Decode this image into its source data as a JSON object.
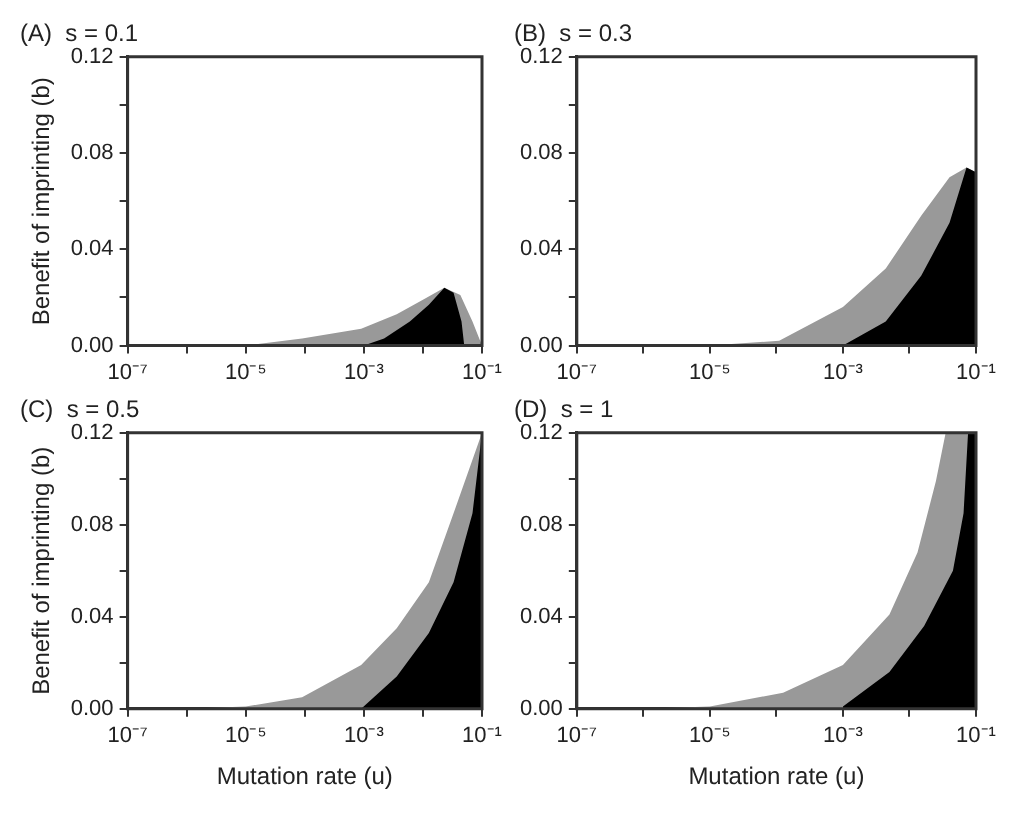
{
  "chart_data": [
    {
      "type": "area",
      "title": "(A)  s = 0.1",
      "ylabel": "Benefit of imprinting (b)",
      "log": "x",
      "grid": false,
      "legend": false,
      "xlim": [
        1e-07,
        0.1
      ],
      "ylim": [
        0,
        0.12
      ],
      "xticks": [
        {
          "value": 1e-07,
          "label": "10⁻⁷"
        },
        {
          "value": 1e-06,
          "label": null
        },
        {
          "value": 1e-05,
          "label": "10⁻⁵"
        },
        {
          "value": 0.0001,
          "label": null
        },
        {
          "value": 0.001,
          "label": "10⁻³"
        },
        {
          "value": 0.01,
          "label": null
        },
        {
          "value": 0.1,
          "label": "10⁻¹"
        }
      ],
      "yticks": [
        {
          "value": 0,
          "label": "0.00"
        },
        {
          "value": 0.02,
          "label": null
        },
        {
          "value": 0.04,
          "label": "0.04"
        },
        {
          "value": 0.06,
          "label": null
        },
        {
          "value": 0.08,
          "label": "0.08"
        },
        {
          "value": 0.1,
          "label": null
        },
        {
          "value": 0.12,
          "label": "0.12"
        }
      ],
      "series": [
        {
          "color": "#999999",
          "x": [
            1e-05,
            9e-05,
            0.0009,
            0.0036,
            0.01,
            0.023,
            0.043,
            0.069,
            0.1
          ],
          "values": [
            0,
            0.003,
            0.007,
            0.013,
            0.019,
            0.024,
            0.021,
            0.01,
            0
          ]
        },
        {
          "color": "#000000",
          "x": [
            0.001,
            0.0022,
            0.006,
            0.0126,
            0.023,
            0.033,
            0.045,
            0.05
          ],
          "values": [
            0,
            0.003,
            0.01,
            0.017,
            0.024,
            0.022,
            0.01,
            0
          ]
        }
      ]
    },
    {
      "type": "area",
      "title": "(B)  s = 0.3",
      "log": "x",
      "grid": false,
      "legend": false,
      "xlim": [
        1e-07,
        0.1
      ],
      "ylim": [
        0,
        0.12
      ],
      "xticks": [
        {
          "value": 1e-07,
          "label": "10⁻⁷"
        },
        {
          "value": 1e-06,
          "label": null
        },
        {
          "value": 1e-05,
          "label": "10⁻⁵"
        },
        {
          "value": 0.0001,
          "label": null
        },
        {
          "value": 0.001,
          "label": "10⁻³"
        },
        {
          "value": 0.01,
          "label": null
        },
        {
          "value": 0.1,
          "label": "10⁻¹"
        }
      ],
      "yticks": [
        {
          "value": 0,
          "label": "0.00"
        },
        {
          "value": 0.02,
          "label": null
        },
        {
          "value": 0.04,
          "label": "0.04"
        },
        {
          "value": 0.06,
          "label": null
        },
        {
          "value": 0.08,
          "label": "0.08"
        },
        {
          "value": 0.1,
          "label": null
        },
        {
          "value": 0.12,
          "label": "0.12"
        }
      ],
      "series": [
        {
          "color": "#999999",
          "x": [
            1e-05,
            0.00011,
            0.001,
            0.0044,
            0.015,
            0.04,
            0.072,
            0.1
          ],
          "values": [
            0,
            0.002,
            0.016,
            0.032,
            0.054,
            0.07,
            0.074,
            0.072
          ]
        },
        {
          "color": "#000000",
          "x": [
            0.001,
            0.0044,
            0.015,
            0.04,
            0.072,
            0.1
          ],
          "values": [
            0,
            0.01,
            0.029,
            0.051,
            0.074,
            0.072
          ]
        }
      ]
    },
    {
      "type": "area",
      "title": "(C)  s = 0.5",
      "ylabel": "Benefit of imprinting (b)",
      "xlabel": "Mutation rate (u)",
      "log": "x",
      "grid": false,
      "legend": false,
      "xlim": [
        1e-07,
        0.1
      ],
      "ylim": [
        0,
        0.12
      ],
      "xticks": [
        {
          "value": 1e-07,
          "label": "10⁻⁷"
        },
        {
          "value": 1e-06,
          "label": null
        },
        {
          "value": 1e-05,
          "label": "10⁻⁵"
        },
        {
          "value": 0.0001,
          "label": null
        },
        {
          "value": 0.001,
          "label": "10⁻³"
        },
        {
          "value": 0.01,
          "label": null
        },
        {
          "value": 0.1,
          "label": "10⁻¹"
        }
      ],
      "yticks": [
        {
          "value": 0,
          "label": "0.00"
        },
        {
          "value": 0.02,
          "label": null
        },
        {
          "value": 0.04,
          "label": "0.04"
        },
        {
          "value": 0.06,
          "label": null
        },
        {
          "value": 0.08,
          "label": "0.08"
        },
        {
          "value": 0.1,
          "label": null
        },
        {
          "value": 0.12,
          "label": "0.12"
        }
      ],
      "series": [
        {
          "color": "#999999",
          "x": [
            1e-06,
            1e-05,
            9e-05,
            0.0009,
            0.0036,
            0.0126,
            0.033,
            0.1
          ],
          "values": [
            0,
            0.001,
            0.005,
            0.019,
            0.035,
            0.055,
            0.085,
            0.12
          ]
        },
        {
          "color": "#000000",
          "x": [
            0.0009,
            0.0036,
            0.0126,
            0.033,
            0.069,
            0.1
          ],
          "values": [
            0,
            0.014,
            0.033,
            0.055,
            0.085,
            0.12
          ]
        }
      ]
    },
    {
      "type": "area",
      "title": "(D)  s = 1",
      "xlabel": "Mutation rate (u)",
      "log": "x",
      "grid": false,
      "legend": false,
      "xlim": [
        1e-07,
        0.1
      ],
      "ylim": [
        0,
        0.12
      ],
      "xticks": [
        {
          "value": 1e-07,
          "label": "10⁻⁷"
        },
        {
          "value": 1e-06,
          "label": null
        },
        {
          "value": 1e-05,
          "label": "10⁻⁵"
        },
        {
          "value": 0.0001,
          "label": null
        },
        {
          "value": 0.001,
          "label": "10⁻³"
        },
        {
          "value": 0.01,
          "label": null
        },
        {
          "value": 0.1,
          "label": "10⁻¹"
        }
      ],
      "yticks": [
        {
          "value": 0,
          "label": "0.00"
        },
        {
          "value": 0.02,
          "label": null
        },
        {
          "value": 0.04,
          "label": "0.04"
        },
        {
          "value": 0.06,
          "label": null
        },
        {
          "value": 0.08,
          "label": "0.08"
        },
        {
          "value": 0.1,
          "label": null
        },
        {
          "value": 0.12,
          "label": "0.12"
        }
      ],
      "series": [
        {
          "color": "#999999",
          "x": [
            1e-06,
            1e-05,
            0.000126,
            0.001,
            0.005,
            0.0132,
            0.025,
            0.035,
            0.1
          ],
          "values": [
            0,
            0.001,
            0.007,
            0.019,
            0.041,
            0.068,
            0.099,
            0.12,
            0.12
          ]
        },
        {
          "color": "#000000",
          "x": [
            0.001,
            0.005,
            0.0166,
            0.045,
            0.065,
            0.076,
            0.1
          ],
          "values": [
            0.001,
            0.016,
            0.036,
            0.06,
            0.085,
            0.12,
            0.12
          ]
        }
      ]
    }
  ]
}
